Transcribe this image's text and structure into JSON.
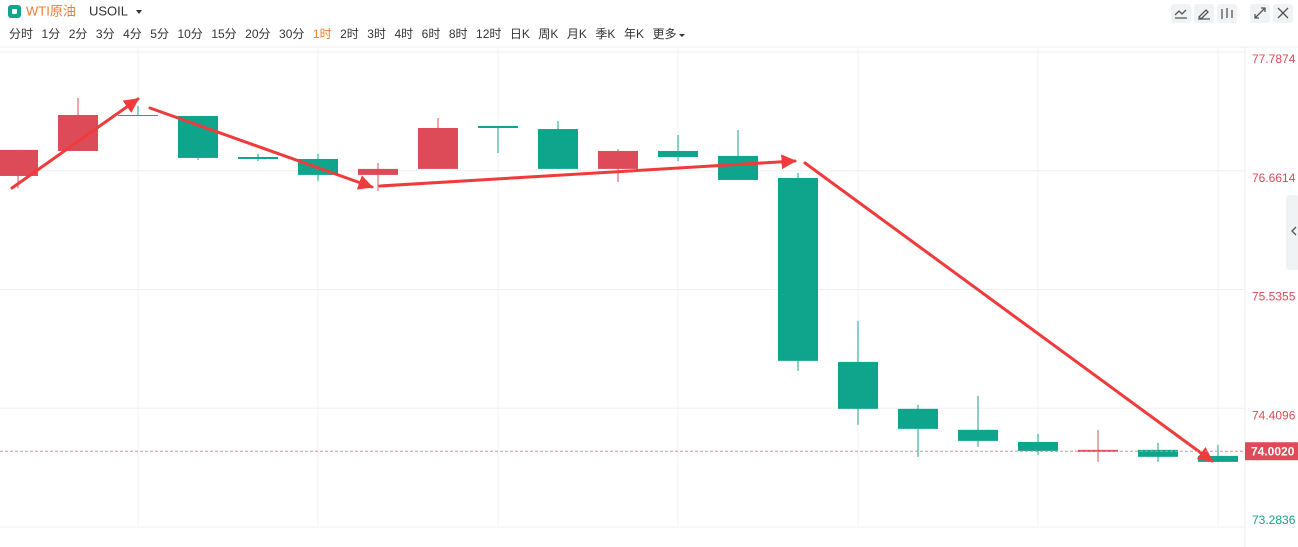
{
  "chart_data": {
    "type": "candlestick",
    "title": "WTI原油",
    "subtitle": "USOIL",
    "intervals": [
      "分时",
      "1分",
      "2分",
      "3分",
      "4分",
      "5分",
      "10分",
      "15分",
      "20分",
      "30分",
      "1时",
      "2时",
      "3时",
      "4时",
      "6时",
      "8时",
      "12时",
      "日K",
      "周K",
      "月K",
      "季K",
      "年K",
      "更多"
    ],
    "active_interval": "1时",
    "up_color": "#dc4b57",
    "down_color": "#0ea58c",
    "open": [
      76.612,
      76.849,
      77.19,
      77.181,
      76.792,
      76.773,
      76.622,
      76.679,
      77.086,
      77.057,
      76.679,
      76.849,
      76.802,
      76.593,
      74.849,
      74.404,
      74.205,
      74.09,
      73.996,
      74.015,
      73.958
    ],
    "high": [
      76.859,
      77.351,
      77.276,
      77.181,
      76.821,
      76.821,
      76.735,
      77.162,
      77.086,
      77.133,
      76.868,
      77.001,
      77.048,
      76.641,
      75.238,
      74.442,
      74.527,
      74.166,
      74.205,
      74.081,
      74.062
    ],
    "low": [
      76.498,
      76.849,
      77.181,
      76.764,
      76.754,
      76.565,
      76.47,
      76.679,
      76.83,
      76.679,
      76.555,
      76.754,
      76.574,
      74.764,
      74.252,
      73.949,
      74.043,
      73.968,
      73.901,
      73.901,
      73.901
    ],
    "close": [
      76.859,
      77.19,
      77.181,
      76.783,
      76.773,
      76.622,
      76.679,
      77.067,
      77.067,
      76.679,
      76.849,
      76.792,
      76.574,
      74.859,
      74.404,
      74.214,
      74.1,
      74.005,
      74.015,
      73.949,
      73.901
    ],
    "ylim": [
      73.2836,
      77.7874
    ],
    "yticks": [
      77.7874,
      76.6614,
      75.5355,
      74.4096,
      73.2836
    ],
    "last_price": {
      "value": 74.002,
      "label": "74.0020"
    },
    "grid": true
  }
}
